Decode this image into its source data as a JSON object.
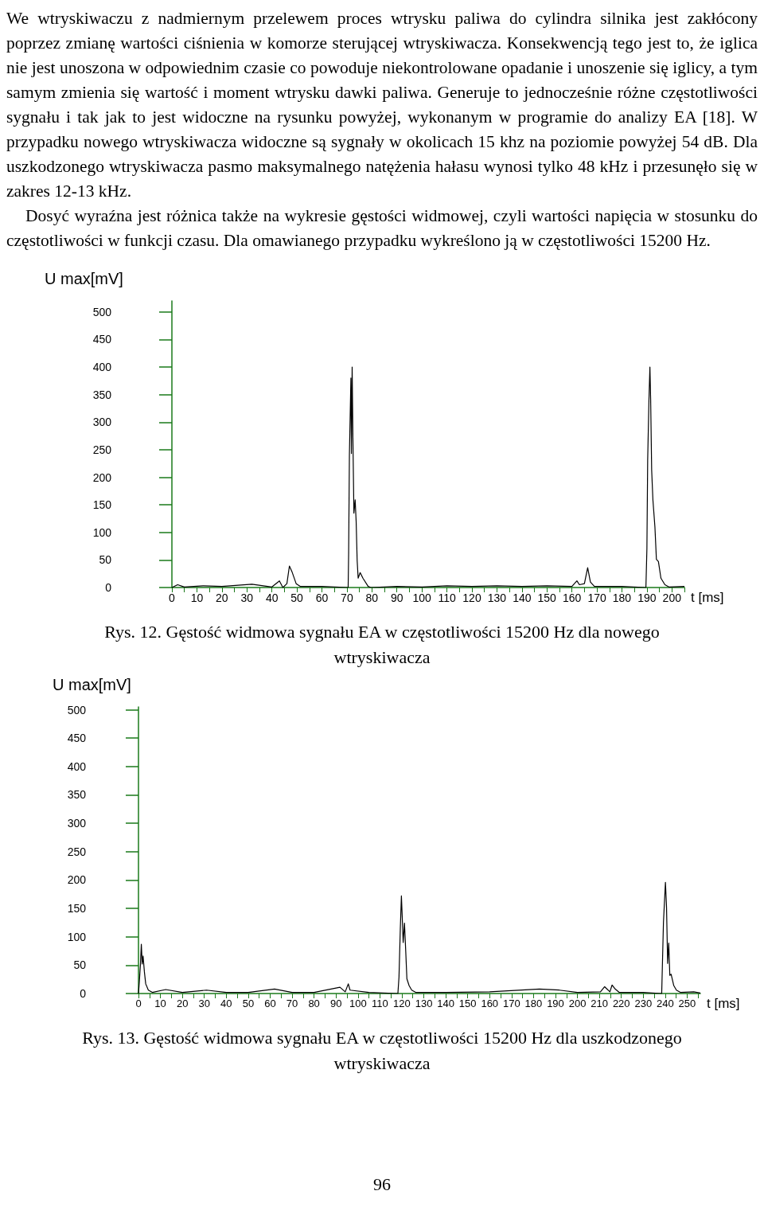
{
  "chart_data": [
    {
      "type": "line",
      "title": "We wtryskiwaczu z nadmiernym przelewem proces wtrysku paliwa do cylindra silnika jest zakłócony poprzez zmianę wartości ciśnienia w komorze sterującej wtryskiwacza. Konsekwencją tego jest to, że iglica nie jest unoszona w odpowiednim czasie co powoduje niekontrolowane opadanie i unoszenie się iglicy, a tym samym zmienia się wartość i moment wtrysku dawki paliwa. Generuje to jednocześnie różne częstotliwości sygnału i tak jak to jest widoczne na rysunku powyżej, wykonanym w programie do analizy EA [18]. W przypadku nowego wtryskiwacza widoczne są sygnały w okolicach 15 khz na poziomie powyżej 54 dB. Dla uszkodzonego wtryskiwacza pasmo maksymalnego natężenia hałasu wynosi tylko 48 kHz i przesunęło się w zakres 12-13 kHz.",
      "subtitle": "Dosyć wyraźna jest różnica także na wykresie gęstości widmowej, czyli wartości napięcia w stosunku do częstotliwości w funkcji czasu. Dla omawianego przypadku wykreślono ją w częstotliwości 15200 Hz.",
      "annotations": [
        "Rys. 12. Gęstość widmowa sygnału EA w częstotliwości 15200 Hz dla nowego wtryskiwacza"
      ],
      "xlabel": "t [ms]",
      "ylabel": "U max[mV]",
      "grid": false,
      "xlim": [
        0,
        205
      ],
      "ylim": [
        0,
        520
      ],
      "yticks": [
        0,
        50,
        100,
        150,
        200,
        250,
        300,
        350,
        400,
        450,
        500
      ],
      "xticks": [
        0,
        {
          "value": 5,
          "label": null
        },
        10,
        {
          "value": 15,
          "label": null
        },
        20,
        {
          "value": 25,
          "label": null
        },
        30,
        {
          "value": 35,
          "label": null
        },
        40,
        {
          "value": 45,
          "label": null
        },
        50,
        {
          "value": 55,
          "label": null
        },
        60,
        {
          "value": 65,
          "label": null
        },
        70,
        {
          "value": 75,
          "label": null
        },
        80,
        {
          "value": 85,
          "label": null
        },
        90,
        {
          "value": 95,
          "label": null
        },
        100,
        {
          "value": 105,
          "label": null
        },
        110,
        {
          "value": 115,
          "label": null
        },
        120,
        {
          "value": 125,
          "label": null
        },
        130,
        {
          "value": 135,
          "label": null
        },
        140,
        {
          "value": 145,
          "label": null
        },
        150,
        {
          "value": 155,
          "label": null
        },
        160,
        {
          "value": 165,
          "label": null
        },
        170,
        {
          "value": 175,
          "label": null
        },
        180,
        {
          "value": 185,
          "label": null
        },
        190,
        {
          "value": 195,
          "label": null
        },
        200,
        {
          "value": 205,
          "label": null
        }
      ],
      "series": [
        {
          "color": "#000000",
          "x": [
            0,
            2.3,
            5,
            12.5,
            20,
            32,
            40,
            43,
            44.4,
            46,
            47,
            48,
            49.7,
            51.3,
            60,
            70.5,
            70.7,
            71,
            71.6,
            71.8,
            72.1,
            72.4,
            72.8,
            73.3,
            73.7,
            74.1,
            74.5,
            75.3,
            76.4,
            78.5,
            79.6,
            90,
            100,
            110,
            120,
            130,
            140,
            150,
            160,
            162,
            163,
            165,
            166.3,
            167.4,
            169,
            180,
            189.6,
            190,
            190.3,
            190.8,
            191.2,
            191.5,
            191.9,
            192.4,
            193.2,
            193.8,
            194.6,
            195.6,
            197.2,
            198.8,
            205
          ],
          "values": [
            0,
            5,
            1,
            3,
            2,
            6,
            1,
            12,
            0,
            7,
            39,
            29,
            7,
            2,
            2,
            0,
            64,
            240,
            380,
            243,
            400,
            272,
            135,
            159,
            120,
            49,
            17,
            27,
            17,
            2,
            0,
            2,
            1,
            3,
            2,
            3,
            2,
            3,
            2,
            12,
            5,
            7,
            36,
            10,
            2,
            2,
            0,
            71,
            230,
            338,
            400,
            340,
            213,
            159,
            110,
            51,
            47,
            17,
            5,
            1,
            2
          ]
        }
      ]
    },
    {
      "type": "line",
      "annotations": [
        "Rys. 13. Gęstość widmowa sygnału EA w częstotliwości 15200 Hz dla uszkodzonego wtryskiwacza",
        "96"
      ],
      "xlabel": "t [ms]",
      "ylabel": "U max[mV]",
      "grid": false,
      "xlim": [
        0,
        256
      ],
      "ylim": [
        0,
        505
      ],
      "yticks": [
        0,
        50,
        100,
        150,
        200,
        250,
        300,
        350,
        400,
        450,
        500
      ],
      "xticks": [
        0,
        {
          "value": 5,
          "label": null
        },
        10,
        {
          "value": 15,
          "label": null
        },
        20,
        {
          "value": 25,
          "label": null
        },
        30,
        {
          "value": 35,
          "label": null
        },
        40,
        {
          "value": 45,
          "label": null
        },
        50,
        {
          "value": 55,
          "label": null
        },
        60,
        {
          "value": 65,
          "label": null
        },
        70,
        {
          "value": 75,
          "label": null
        },
        80,
        {
          "value": 85,
          "label": null
        },
        90,
        {
          "value": 95,
          "label": null
        },
        100,
        {
          "value": 105,
          "label": null
        },
        110,
        {
          "value": 115,
          "label": null
        },
        120,
        {
          "value": 125,
          "label": null
        },
        130,
        {
          "value": 135,
          "label": null
        },
        140,
        {
          "value": 145,
          "label": null
        },
        150,
        {
          "value": 155,
          "label": null
        },
        160,
        {
          "value": 165,
          "label": null
        },
        170,
        {
          "value": 175,
          "label": null
        },
        180,
        {
          "value": 185,
          "label": null
        },
        190,
        {
          "value": 195,
          "label": null
        },
        200,
        {
          "value": 205,
          "label": null
        },
        210,
        {
          "value": 215,
          "label": null
        },
        220,
        {
          "value": 225,
          "label": null
        },
        230,
        {
          "value": 235,
          "label": null
        },
        240,
        {
          "value": 245,
          "label": null
        },
        250,
        {
          "value": 255,
          "label": null
        }
      ],
      "series": [
        {
          "color": "#000000",
          "x": [
            0,
            0.4,
            0.9,
            1.3,
            1.7,
            2.1,
            2.7,
            3.3,
            4.5,
            6.3,
            12.4,
            20,
            31,
            40,
            50,
            62,
            70,
            80,
            91.8,
            94.2,
            95.6,
            96.4,
            105,
            118.2,
            118.7,
            119.3,
            119.8,
            120.1,
            120.6,
            121.2,
            121.8,
            122.3,
            123.3,
            124.5,
            126.3,
            140,
            160,
            182.7,
            191.8,
            200,
            210.5,
            212.4,
            214.8,
            215.8,
            217.2,
            219,
            230,
            238.4,
            239.2,
            240.1,
            240.6,
            241.1,
            241.6,
            242.1,
            242.7,
            243.9,
            245.1,
            246.9,
            253,
            256
          ],
          "values": [
            0,
            21,
            52,
            87,
            52,
            66,
            38,
            17,
            6,
            2,
            7,
            2,
            6,
            2,
            2,
            8,
            2,
            2,
            11,
            3,
            17,
            6,
            2,
            0,
            29,
            114,
            172,
            142,
            90,
            124,
            72,
            26,
            14,
            6,
            2,
            2,
            3,
            8,
            6,
            2,
            3,
            12,
            3,
            15,
            8,
            2,
            2,
            0,
            126,
            196,
            152,
            53,
            89,
            32,
            34,
            14,
            6,
            2,
            3,
            1
          ]
        }
      ]
    }
  ]
}
